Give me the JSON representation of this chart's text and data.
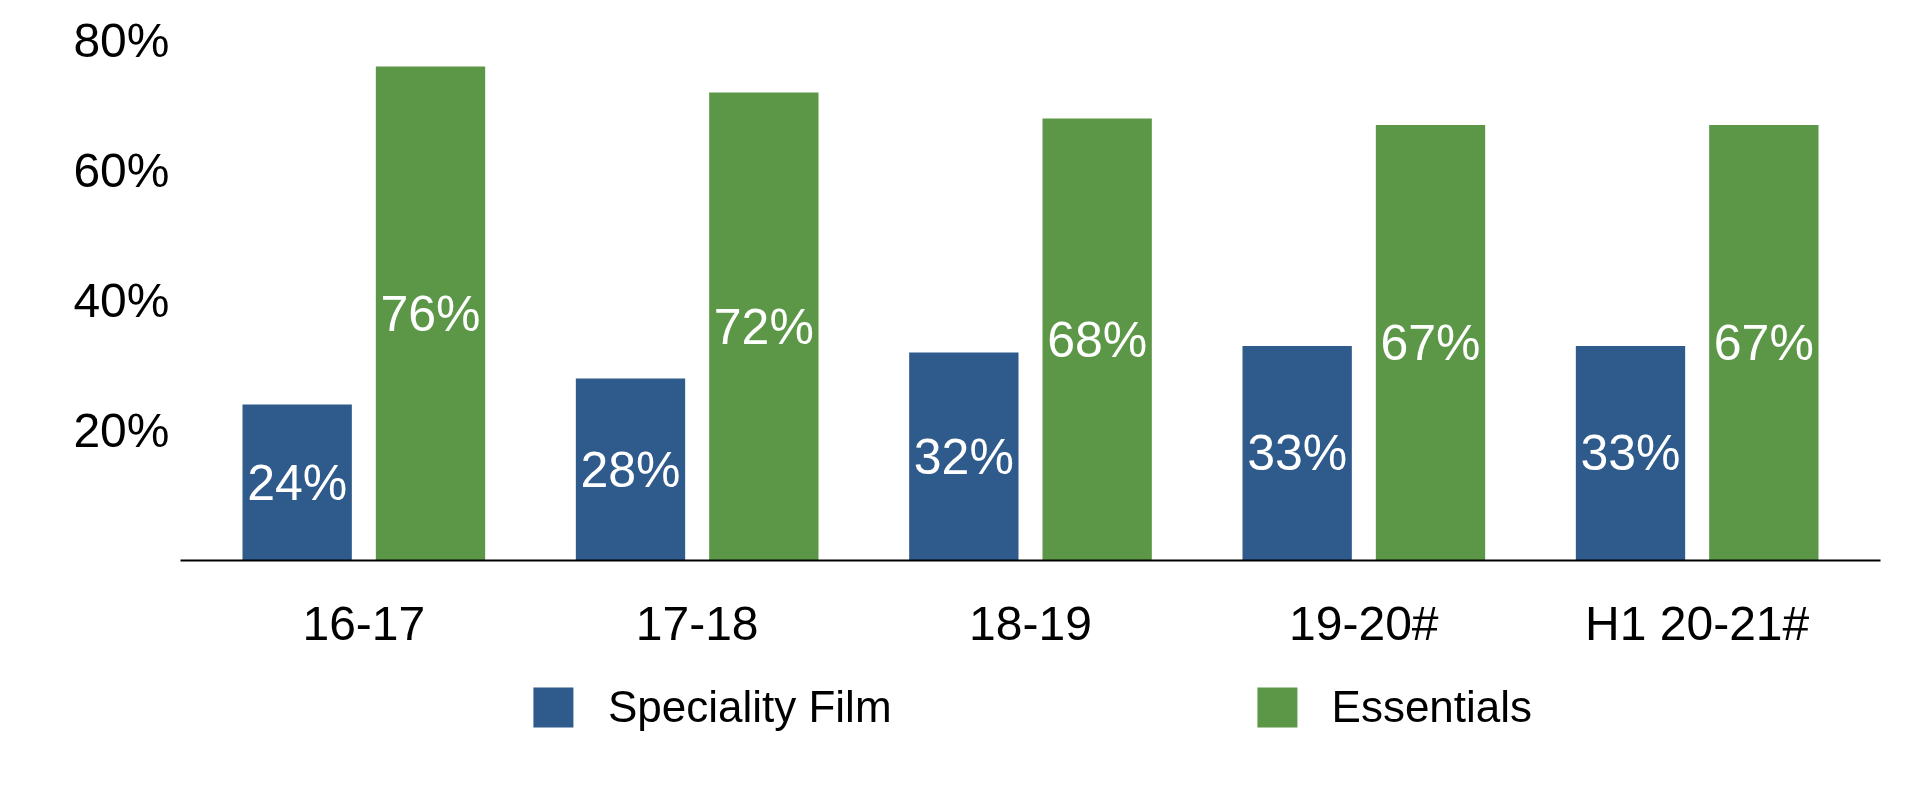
{
  "chart_data": {
    "type": "bar",
    "categories": [
      "16-17",
      "17-18",
      "18-19",
      "19-20#",
      "H1 20-21#"
    ],
    "series": [
      {
        "name": "Speciality Film",
        "color": "#2e5a8c",
        "values": [
          24,
          28,
          32,
          33,
          33
        ],
        "value_labels": [
          "24%",
          "28%",
          "32%",
          "33%",
          "33%"
        ]
      },
      {
        "name": "Essentials",
        "color": "#5c9748",
        "values": [
          76,
          72,
          68,
          67,
          67
        ],
        "value_labels": [
          "76%",
          "72%",
          "68%",
          "67%",
          "67%"
        ]
      }
    ],
    "ylim": [
      0,
      80
    ],
    "yticks": [
      {
        "value": 20,
        "label": "20%"
      },
      {
        "value": 40,
        "label": "40%"
      },
      {
        "value": 60,
        "label": "60%"
      },
      {
        "value": 80,
        "label": "80%"
      }
    ],
    "grid": false,
    "legend": "bottom"
  }
}
